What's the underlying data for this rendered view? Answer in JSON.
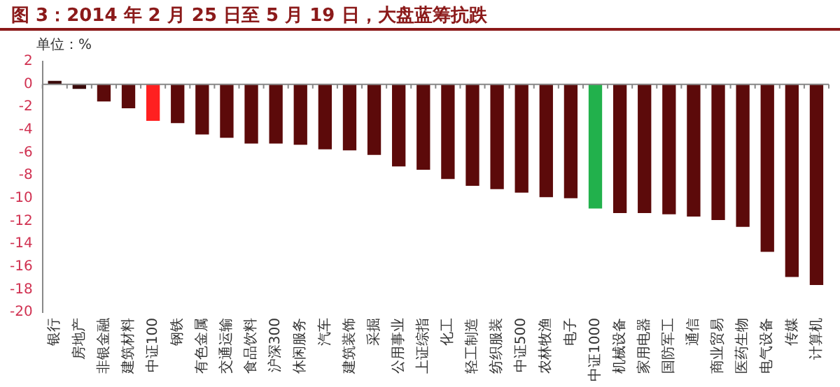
{
  "chart_data": {
    "type": "bar",
    "title": "图 3：2014 年 2 月 25 日至 5 月 19 日，大盘蓝筹抗跌",
    "annotations": [
      "单位：%"
    ],
    "categories": [
      "银行",
      "房地产",
      "非银金融",
      "建筑材料",
      "中证100",
      "钢铁",
      "有色金属",
      "交通运输",
      "食品饮料",
      "沪深300",
      "休闲服务",
      "汽车",
      "建筑装饰",
      "采掘",
      "公用事业",
      "上证综指",
      "化工",
      "轻工制造",
      "纺织服装",
      "中证500",
      "农林牧渔",
      "电子",
      "中证1000",
      "机械设备",
      "家用电器",
      "国防军工",
      "通信",
      "商业贸易",
      "医药生物",
      "电气设备",
      "传媒",
      "计算机"
    ],
    "values": [
      0.3,
      -0.4,
      -1.5,
      -2.1,
      -3.2,
      -3.4,
      -4.4,
      -4.7,
      -5.2,
      -5.2,
      -5.3,
      -5.7,
      -5.8,
      -6.2,
      -7.2,
      -7.5,
      -8.3,
      -8.9,
      -9.2,
      -9.5,
      -9.9,
      -10.0,
      -10.9,
      -11.3,
      -11.3,
      -11.4,
      -11.6,
      -11.9,
      -12.5,
      -14.7,
      -16.9,
      -17.6
    ],
    "colors": [
      "#3a0a0a",
      "#3a0a0a",
      "#5c0a0a",
      "#5c0a0a",
      "#ff2020",
      "#5c0a0a",
      "#5c0a0a",
      "#5c0a0a",
      "#5c0a0a",
      "#5c0a0a",
      "#5c0a0a",
      "#5c0a0a",
      "#5c0a0a",
      "#5c0a0a",
      "#5c0a0a",
      "#5c0a0a",
      "#5c0a0a",
      "#5c0a0a",
      "#5c0a0a",
      "#5c0a0a",
      "#5c0a0a",
      "#5c0a0a",
      "#22b14c",
      "#5c0a0a",
      "#5c0a0a",
      "#5c0a0a",
      "#5c0a0a",
      "#5c0a0a",
      "#5c0a0a",
      "#5c0a0a",
      "#5c0a0a",
      "#5c0a0a"
    ],
    "ylim": [
      -20,
      2
    ],
    "yticks": [
      -20,
      -18,
      -16,
      -14,
      -12,
      -10,
      -8,
      -6,
      -4,
      -2,
      0,
      2
    ],
    "ref_lines": [
      {
        "axis": "y",
        "value": 0,
        "color": "#888888"
      }
    ],
    "grid": false,
    "legend": false
  }
}
